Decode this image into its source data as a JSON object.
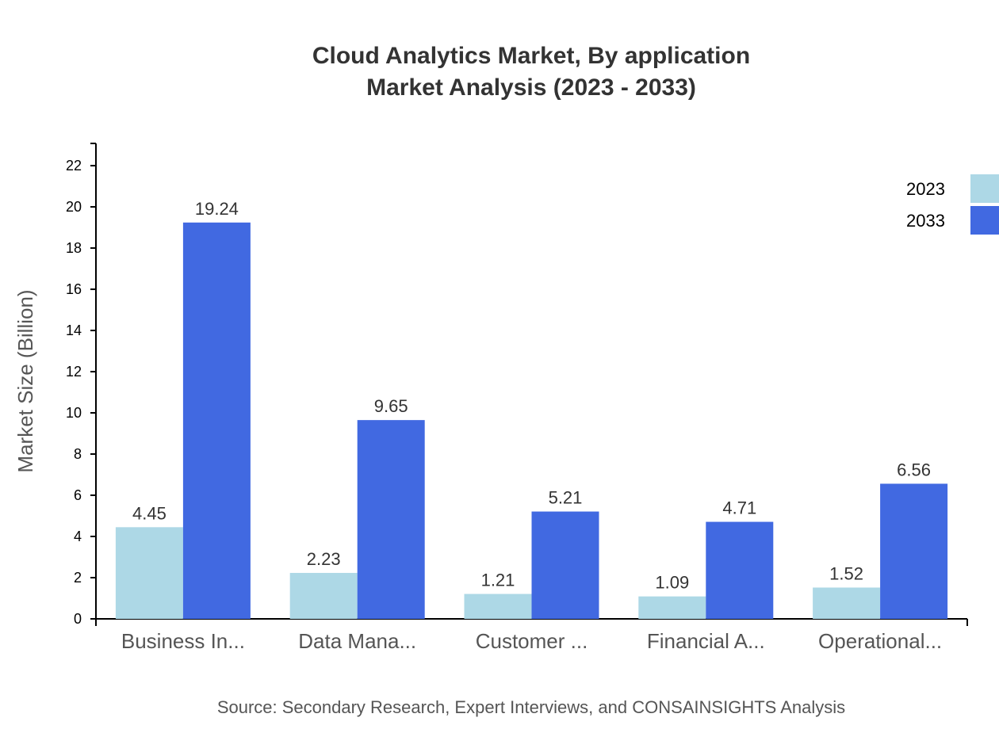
{
  "chart_data": {
    "type": "bar",
    "title": [
      "Cloud Analytics Market, By application",
      "Market Analysis (2023 - 2033)"
    ],
    "ylabel": "Market Size (Billion)",
    "xlabel": "",
    "categories": [
      "Business In...",
      "Data Mana...",
      "Customer ...",
      "Financial A...",
      "Operational..."
    ],
    "series": [
      {
        "name": "2023",
        "color": "#add8e6",
        "values": [
          4.45,
          2.23,
          1.21,
          1.09,
          1.52
        ]
      },
      {
        "name": "2033",
        "color": "#4169e1",
        "values": [
          19.24,
          9.65,
          5.21,
          4.71,
          6.56
        ]
      }
    ],
    "yticks": [
      0,
      2,
      4,
      6,
      8,
      10,
      12,
      14,
      16,
      18,
      20,
      22
    ],
    "ylim": [
      0,
      23.08
    ],
    "grid": false,
    "legend_position": "top-right",
    "source": "Source: Secondary Research, Expert Interviews, and CONSAINSIGHTS Analysis"
  }
}
